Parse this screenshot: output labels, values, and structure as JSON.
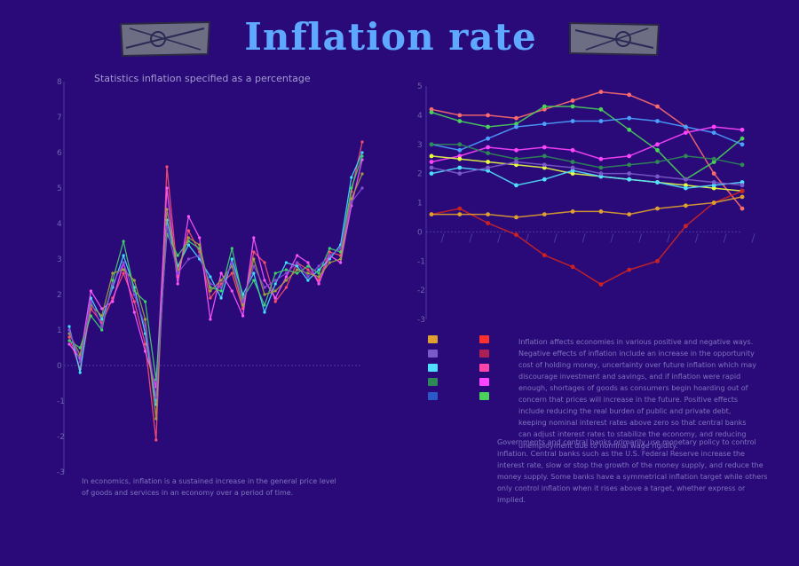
{
  "header": {
    "title": "Inflation rate",
    "subtitle": "Statistics inflation specified as a percentage"
  },
  "flag_icon_left": "flag-icon",
  "flag_icon_right": "flag-icon",
  "texts": {
    "left": "In economics, inflation is a sustained increase in the general price level of goods and services in an economy over a period of time.",
    "right1": "Inflation affects economies in various positive and negative ways. Negative effects of inflation include an increase in the opportunity cost of holding money, uncertainty over future inflation which may discourage investment and savings, and if inflation were rapid enough, shortages of goods as consumers begin hoarding out of concern that prices will increase in the future. Positive effects include reducing the real burden of public and private debt, keeping nominal interest rates above zero so that central banks can adjust interest rates to stabilize the economy, and reducing unemployment due to nominal wage rigidity.",
    "right2": "Governments and central banks primarily use monetary policy to control inflation. Central banks such as the U.S. Federal Reserve increase the interest rate, slow or stop the growth of the money supply, and reduce the money supply. Some banks have a symmetrical inflation target while others only control inflation when it rises above a target, whether express or implied."
  },
  "colors": {
    "background": "#2a0a78",
    "title": "#5fa8ff",
    "axis": "#4a3aa0"
  },
  "chart_data": [
    {
      "type": "line",
      "title": "Statistics inflation specified as a percentage",
      "ylim": [
        -3,
        8
      ],
      "yticks": [
        "8",
        "7",
        "6",
        "5",
        "4",
        "3",
        "2",
        "1",
        "0",
        "-1",
        "-2",
        "-3"
      ],
      "grid": false,
      "series": [
        {
          "color": "#ff4d6d",
          "values": [
            0.8,
            -0.1,
            1.6,
            1.2,
            1.9,
            2.6,
            1.8,
            0.6,
            -2.1,
            5.6,
            2.5,
            3.8,
            3.2,
            1.9,
            2.3,
            2.6,
            1.6,
            3.2,
            2.9,
            1.8,
            2.2,
            2.9,
            2.7,
            2.4,
            3.2,
            3.1,
            4.9,
            6.3
          ]
        },
        {
          "color": "#40e0ff",
          "values": [
            1.1,
            -0.2,
            1.9,
            1.3,
            2.2,
            3.1,
            2.2,
            0.9,
            -1.1,
            4.1,
            2.8,
            3.4,
            3.0,
            2.5,
            1.9,
            3.0,
            2.0,
            2.6,
            1.5,
            2.3,
            2.9,
            2.8,
            2.4,
            2.7,
            3.0,
            3.4,
            5.3,
            6.0
          ]
        },
        {
          "color": "#ff55ff",
          "values": [
            0.6,
            0.2,
            2.1,
            1.6,
            1.8,
            2.9,
            1.5,
            0.4,
            -0.6,
            5.0,
            2.3,
            4.2,
            3.6,
            1.3,
            2.6,
            2.1,
            1.4,
            3.6,
            2.4,
            1.9,
            2.5,
            3.1,
            2.9,
            2.3,
            3.1,
            2.9,
            4.5,
            5.8
          ]
        },
        {
          "color": "#3fd36a",
          "values": [
            0.7,
            0.5,
            1.4,
            1.0,
            2.4,
            3.5,
            2.1,
            1.8,
            -0.4,
            3.7,
            3.1,
            3.5,
            3.3,
            2.2,
            2.1,
            3.3,
            1.9,
            2.4,
            1.7,
            2.6,
            2.7,
            2.6,
            2.8,
            2.6,
            3.3,
            3.2,
            5.0,
            5.9
          ]
        },
        {
          "color": "#a0a040",
          "values": [
            0.9,
            0.3,
            1.7,
            1.4,
            2.6,
            2.7,
            2.4,
            1.3,
            -1.5,
            4.4,
            2.7,
            3.6,
            3.4,
            2.1,
            2.4,
            2.8,
            1.7,
            3.0,
            2.0,
            2.1,
            2.4,
            2.7,
            2.6,
            2.5,
            2.9,
            3.0,
            4.7,
            5.4
          ]
        },
        {
          "color": "#8a4ad8",
          "values": [
            1.0,
            0.1,
            1.8,
            1.1,
            2.3,
            2.9,
            2.0,
            1.1,
            -0.9,
            3.9,
            2.6,
            3.0,
            3.1,
            2.3,
            2.2,
            2.9,
            1.8,
            2.8,
            2.2,
            2.4,
            2.6,
            2.9,
            2.5,
            2.8,
            3.1,
            3.3,
            4.6,
            5.0
          ]
        }
      ]
    },
    {
      "type": "line",
      "ylim": [
        -3,
        5
      ],
      "yticks": [
        "5",
        "4",
        "3",
        "2",
        "1",
        "0",
        "-1",
        "-2",
        "-3"
      ],
      "grid": false,
      "series": [
        {
          "color": "#ff6b6b",
          "values": [
            4.2,
            4.0,
            4.0,
            3.9,
            4.2,
            4.5,
            4.8,
            4.7,
            4.3,
            3.6,
            2.0,
            0.8
          ]
        },
        {
          "color": "#49d15a",
          "values": [
            4.1,
            3.8,
            3.6,
            3.7,
            4.3,
            4.3,
            4.2,
            3.5,
            2.8,
            1.8,
            2.4,
            3.2
          ]
        },
        {
          "color": "#4aa0ff",
          "values": [
            3.0,
            2.8,
            3.2,
            3.6,
            3.7,
            3.8,
            3.8,
            3.9,
            3.8,
            3.6,
            3.4,
            3.0
          ]
        },
        {
          "color": "#ff44ff",
          "values": [
            2.4,
            2.6,
            2.9,
            2.8,
            2.9,
            2.8,
            2.5,
            2.6,
            3.0,
            3.4,
            3.6,
            3.5
          ]
        },
        {
          "color": "#e8ff40",
          "values": [
            2.6,
            2.5,
            2.4,
            2.3,
            2.2,
            2.0,
            1.9,
            1.8,
            1.7,
            1.6,
            1.5,
            1.4
          ]
        },
        {
          "color": "#50e0ff",
          "values": [
            2.0,
            2.2,
            2.1,
            1.6,
            1.8,
            2.1,
            1.9,
            1.8,
            1.7,
            1.5,
            1.6,
            1.7
          ]
        },
        {
          "color": "#2e8a55",
          "values": [
            3.0,
            3.0,
            2.7,
            2.5,
            2.6,
            2.4,
            2.2,
            2.3,
            2.4,
            2.6,
            2.5,
            2.3
          ]
        },
        {
          "color": "#cc2222",
          "values": [
            0.6,
            0.8,
            0.3,
            -0.1,
            -0.8,
            -1.2,
            -1.8,
            -1.3,
            -1.0,
            0.2,
            1.0,
            1.4
          ]
        },
        {
          "color": "#e0a030",
          "values": [
            0.6,
            0.6,
            0.6,
            0.5,
            0.6,
            0.7,
            0.7,
            0.6,
            0.8,
            0.9,
            1.0,
            1.2
          ]
        },
        {
          "color": "#7a5ac8",
          "values": [
            2.2,
            2.0,
            2.2,
            2.4,
            2.3,
            2.2,
            2.0,
            2.0,
            1.9,
            1.8,
            1.7,
            1.6
          ]
        }
      ]
    }
  ],
  "legend": {
    "swatches": [
      "#e0a030",
      "#ff3030",
      "#7a5ac8",
      "#aa2255",
      "#50e0ff",
      "#ff44aa",
      "#2e8a55",
      "#ff44ff",
      "#2a5ac8",
      "#49d15a"
    ]
  }
}
